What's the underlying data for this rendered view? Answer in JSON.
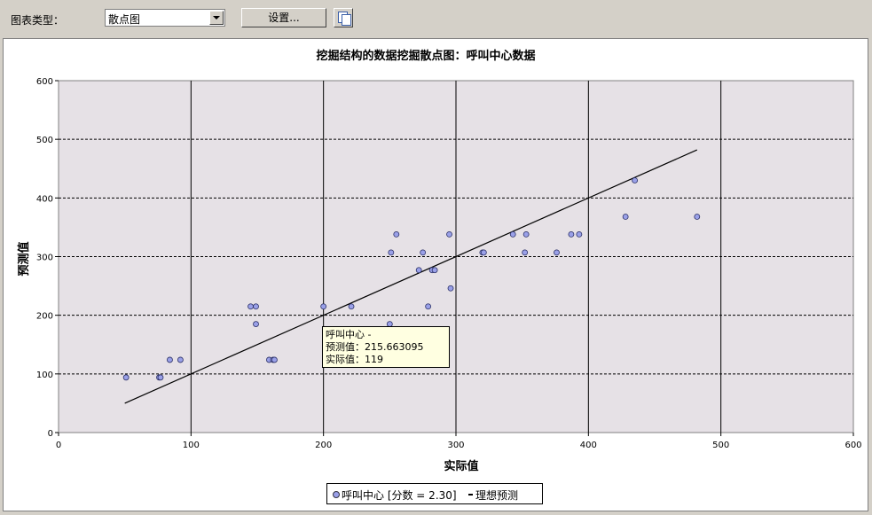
{
  "toolbar": {
    "chart_type_label": "图表类型：",
    "chart_type_value": "散点图",
    "settings_button": "设置...",
    "copy_icon": "copy-icon"
  },
  "tooltip": {
    "line1": "呼叫中心 -",
    "line2": "预测值：215.663095",
    "line3": "实际值：119"
  },
  "legend": {
    "series_label": "呼叫中心 [分数 = 2.30]",
    "ideal_label": "理想预测"
  },
  "chart_data": {
    "type": "scatter",
    "title": "挖掘结构的数据挖掘散点图：呼叫中心数据",
    "xlabel": "实际值",
    "ylabel": "预测值",
    "xlim": [
      0,
      600
    ],
    "ylim": [
      0,
      600
    ],
    "xticks": [
      0,
      100,
      200,
      300,
      400,
      500,
      600
    ],
    "yticks": [
      0,
      100,
      200,
      300,
      400,
      500,
      600
    ],
    "plot_background": "#e6e1e6",
    "point_color": "#9aa0e8",
    "series": [
      {
        "name": "呼叫中心 [分数 = 2.30]",
        "points": [
          [
            51,
            94
          ],
          [
            76,
            94
          ],
          [
            77,
            94
          ],
          [
            84,
            124
          ],
          [
            92,
            124
          ],
          [
            145,
            215
          ],
          [
            149,
            215
          ],
          [
            149,
            185
          ],
          [
            159,
            124
          ],
          [
            162,
            124
          ],
          [
            163,
            124
          ],
          [
            200,
            215
          ],
          [
            221,
            215
          ],
          [
            250,
            185
          ],
          [
            251,
            307
          ],
          [
            255,
            338
          ],
          [
            272,
            277
          ],
          [
            275,
            307
          ],
          [
            279,
            215
          ],
          [
            282,
            277
          ],
          [
            284,
            277
          ],
          [
            295,
            338
          ],
          [
            296,
            246
          ],
          [
            320,
            307
          ],
          [
            321,
            307
          ],
          [
            343,
            338
          ],
          [
            352,
            307
          ],
          [
            353,
            338
          ],
          [
            376,
            307
          ],
          [
            387,
            338
          ],
          [
            393,
            338
          ],
          [
            428,
            368
          ],
          [
            435,
            430
          ],
          [
            482,
            368
          ]
        ]
      },
      {
        "name": "理想预测",
        "line": [
          [
            50,
            50
          ],
          [
            482,
            482
          ]
        ]
      }
    ]
  }
}
